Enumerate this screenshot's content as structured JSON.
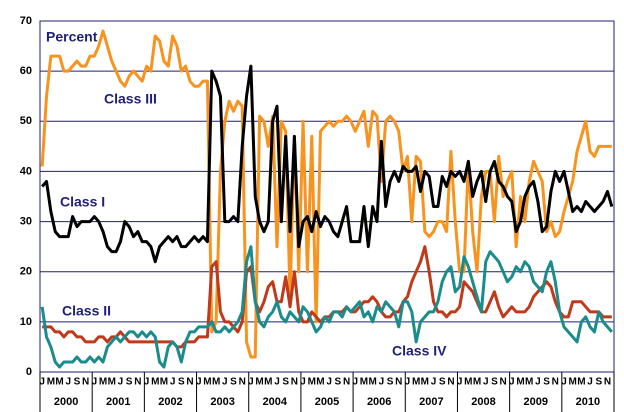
{
  "chart_data": {
    "type": "line",
    "ylabel": "Percent",
    "ylim": [
      0,
      70
    ],
    "yticks": [
      0,
      10,
      20,
      30,
      40,
      50,
      60,
      70
    ],
    "grid": true,
    "categories": [
      "J",
      null,
      "M",
      null,
      "M",
      null,
      "J",
      null,
      "S",
      null,
      "N",
      null,
      "J",
      null,
      "M",
      null,
      "M",
      null,
      "J",
      null,
      "S",
      null,
      "N",
      null,
      "J",
      null,
      "M",
      null,
      "M",
      null,
      "J",
      null,
      "S",
      null,
      "N",
      null,
      "J",
      null,
      "M",
      null,
      "M",
      null,
      "J",
      null,
      "S",
      null,
      "N",
      null,
      "J",
      null,
      "M",
      null,
      "M",
      null,
      "J",
      null,
      "S",
      null,
      "N",
      null,
      "J",
      null,
      "M",
      null,
      "M",
      null,
      "J",
      null,
      "S",
      null,
      "N",
      null,
      "J",
      null,
      "M",
      null,
      "M",
      null,
      "J",
      null,
      "S",
      null,
      "N",
      null,
      "J",
      null,
      "M",
      null,
      "M",
      null,
      "J",
      null,
      "S",
      null,
      "N",
      null,
      "J",
      null,
      "M",
      null,
      "M",
      null,
      "J",
      null,
      "S",
      null,
      "N",
      null,
      "J",
      null,
      "M",
      null,
      "M",
      null,
      "J",
      null,
      "S",
      null,
      "N",
      null,
      "J",
      null,
      "M",
      null,
      "M",
      null,
      "J",
      null,
      "S",
      null,
      "N",
      null
    ],
    "years": [
      "2000",
      "2001",
      "2002",
      "2003",
      "2004",
      "2005",
      "2006",
      "2007",
      "2008",
      "2009",
      "2010"
    ],
    "series": [
      {
        "name": "Class III",
        "color": "#f7931e",
        "values": [
          41,
          55,
          63,
          63,
          63,
          60,
          60,
          61,
          62,
          61,
          61,
          63,
          63,
          65,
          68,
          65,
          62,
          60,
          58,
          57,
          59,
          60,
          59,
          58,
          61,
          60,
          67,
          66,
          62,
          61,
          67,
          65,
          60,
          61,
          58,
          57,
          57,
          58,
          58,
          8,
          10,
          40,
          50,
          54,
          52,
          54,
          53,
          6,
          3,
          3,
          51,
          50,
          45,
          51,
          25,
          50,
          48,
          15,
          47,
          20,
          50,
          20,
          47,
          10,
          48,
          49,
          50,
          49,
          50,
          50,
          51,
          50,
          48,
          50,
          52,
          45,
          52,
          51,
          38,
          50,
          51,
          50,
          48,
          40,
          43,
          30,
          43,
          42,
          28,
          27,
          28,
          30,
          30,
          28,
          44,
          30,
          20,
          20,
          42,
          28,
          20,
          35,
          40,
          40,
          30,
          43,
          35,
          38,
          40,
          25,
          35,
          30,
          38,
          42,
          40,
          38,
          28,
          30,
          27,
          28,
          32,
          35,
          38,
          44,
          47,
          50,
          44,
          43,
          45,
          45,
          45,
          45
        ]
      },
      {
        "name": "Class I",
        "color": "#000000",
        "values": [
          37,
          38,
          32,
          28,
          27,
          27,
          27,
          31,
          29,
          30,
          30,
          30,
          31,
          30,
          28,
          25,
          24,
          24,
          26,
          30,
          29,
          27,
          28,
          26,
          26,
          25,
          22,
          25,
          26,
          27,
          26,
          27,
          25,
          25,
          26,
          27,
          26,
          27,
          26,
          60,
          58,
          55,
          30,
          30,
          31,
          30,
          45,
          55,
          61,
          35,
          30,
          28,
          30,
          50,
          53,
          30,
          47,
          28,
          47,
          25,
          30,
          31,
          28,
          32,
          29,
          31,
          30,
          28,
          27,
          30,
          33,
          26,
          26,
          26,
          33,
          25,
          33,
          30,
          46,
          33,
          38,
          40,
          38,
          41,
          40,
          40,
          41,
          36,
          40,
          39,
          33,
          33,
          39,
          37,
          40,
          39,
          40,
          38,
          42,
          35,
          38,
          40,
          34,
          40,
          42,
          38,
          37,
          35,
          34,
          28,
          30,
          35,
          37,
          38,
          34,
          28,
          29,
          36,
          40,
          38,
          40,
          36,
          32,
          33,
          32,
          34,
          33,
          32,
          33,
          34,
          36,
          33
        ]
      },
      {
        "name": "Class II",
        "color": "#c0391b",
        "values": [
          9,
          9,
          9,
          8,
          8,
          7,
          8,
          8,
          7,
          7,
          6,
          6,
          6,
          7,
          7,
          6,
          7,
          7,
          8,
          7,
          6,
          6,
          6,
          6,
          6,
          6,
          6,
          6,
          6,
          6,
          6,
          5,
          5,
          6,
          6,
          6,
          7,
          7,
          7,
          21,
          22,
          12,
          10,
          10,
          9,
          8,
          10,
          20,
          21,
          14,
          12,
          14,
          17,
          18,
          14,
          14,
          19,
          13,
          20,
          12,
          10,
          10,
          12,
          11,
          10,
          11,
          11,
          12,
          12,
          12,
          13,
          12,
          12,
          13,
          14,
          14,
          15,
          14,
          12,
          11,
          11,
          12,
          12,
          14,
          15,
          18,
          20,
          22,
          25,
          20,
          14,
          12,
          12,
          11,
          12,
          12,
          13,
          18,
          17,
          16,
          14,
          12,
          12,
          14,
          16,
          13,
          11,
          12,
          13,
          12,
          12,
          12,
          13,
          15,
          16,
          17,
          18,
          17,
          14,
          12,
          11,
          11,
          14,
          14,
          14,
          13,
          12,
          12,
          12,
          11,
          11,
          11
        ]
      },
      {
        "name": "Class IV",
        "color": "#1a8c8c",
        "values": [
          13,
          7,
          5,
          2,
          1,
          2,
          2,
          2,
          3,
          2,
          2,
          3,
          2,
          3,
          2,
          5,
          6,
          7,
          6,
          7,
          8,
          8,
          7,
          8,
          7,
          8,
          7,
          2,
          1,
          5,
          6,
          5,
          2,
          6,
          8,
          8,
          9,
          9,
          9,
          10,
          8,
          8,
          9,
          8,
          9,
          10,
          12,
          22,
          25,
          14,
          10,
          9,
          11,
          12,
          14,
          11,
          10,
          12,
          11,
          10,
          13,
          12,
          10,
          8,
          9,
          11,
          10,
          12,
          12,
          11,
          13,
          12,
          13,
          14,
          11,
          12,
          10,
          13,
          12,
          14,
          13,
          12,
          9,
          14,
          14,
          12,
          6,
          10,
          11,
          12,
          12,
          14,
          18,
          20,
          21,
          16,
          17,
          23,
          21,
          18,
          15,
          12,
          22,
          24,
          23,
          22,
          20,
          18,
          19,
          21,
          20,
          22,
          21,
          18,
          17,
          16,
          20,
          22,
          18,
          12,
          9,
          8,
          7,
          6,
          10,
          11,
          9,
          8,
          12,
          10,
          9,
          8
        ]
      }
    ]
  }
}
